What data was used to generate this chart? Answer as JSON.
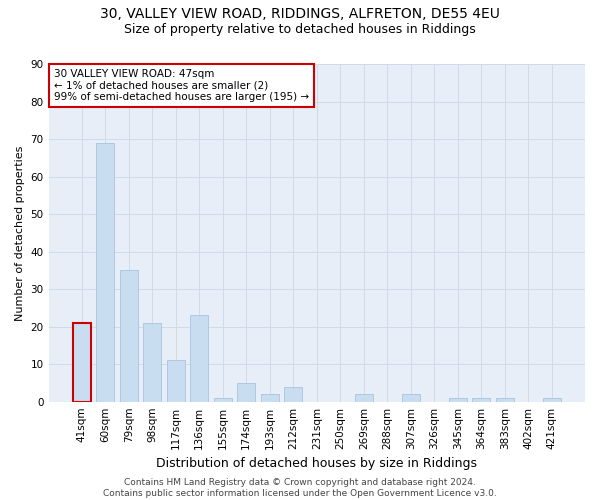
{
  "title_line1": "30, VALLEY VIEW ROAD, RIDDINGS, ALFRETON, DE55 4EU",
  "title_line2": "Size of property relative to detached houses in Riddings",
  "xlabel": "Distribution of detached houses by size in Riddings",
  "ylabel": "Number of detached properties",
  "categories": [
    "41sqm",
    "60sqm",
    "79sqm",
    "98sqm",
    "117sqm",
    "136sqm",
    "155sqm",
    "174sqm",
    "193sqm",
    "212sqm",
    "231sqm",
    "250sqm",
    "269sqm",
    "288sqm",
    "307sqm",
    "326sqm",
    "345sqm",
    "364sqm",
    "383sqm",
    "402sqm",
    "421sqm"
  ],
  "values": [
    21,
    69,
    35,
    21,
    11,
    23,
    1,
    5,
    2,
    4,
    0,
    0,
    2,
    0,
    2,
    0,
    1,
    1,
    1,
    0,
    1
  ],
  "bar_color": "#c9ddf0",
  "bar_edge_color": "#a8c4e0",
  "highlight_bar_index": 0,
  "highlight_bar_edge_color": "#cc0000",
  "ylim": [
    0,
    90
  ],
  "yticks": [
    0,
    10,
    20,
    30,
    40,
    50,
    60,
    70,
    80,
    90
  ],
  "grid_color": "#d0dae8",
  "bg_color": "#e8eef8",
  "annotation_text": "30 VALLEY VIEW ROAD: 47sqm\n← 1% of detached houses are smaller (2)\n99% of semi-detached houses are larger (195) →",
  "annotation_box_color": "#ffffff",
  "annotation_box_edge_color": "#cc0000",
  "footer_text": "Contains HM Land Registry data © Crown copyright and database right 2024.\nContains public sector information licensed under the Open Government Licence v3.0.",
  "title_fontsize": 10,
  "subtitle_fontsize": 9,
  "xlabel_fontsize": 9,
  "ylabel_fontsize": 8,
  "tick_fontsize": 7.5,
  "annotation_fontsize": 7.5,
  "footer_fontsize": 6.5
}
